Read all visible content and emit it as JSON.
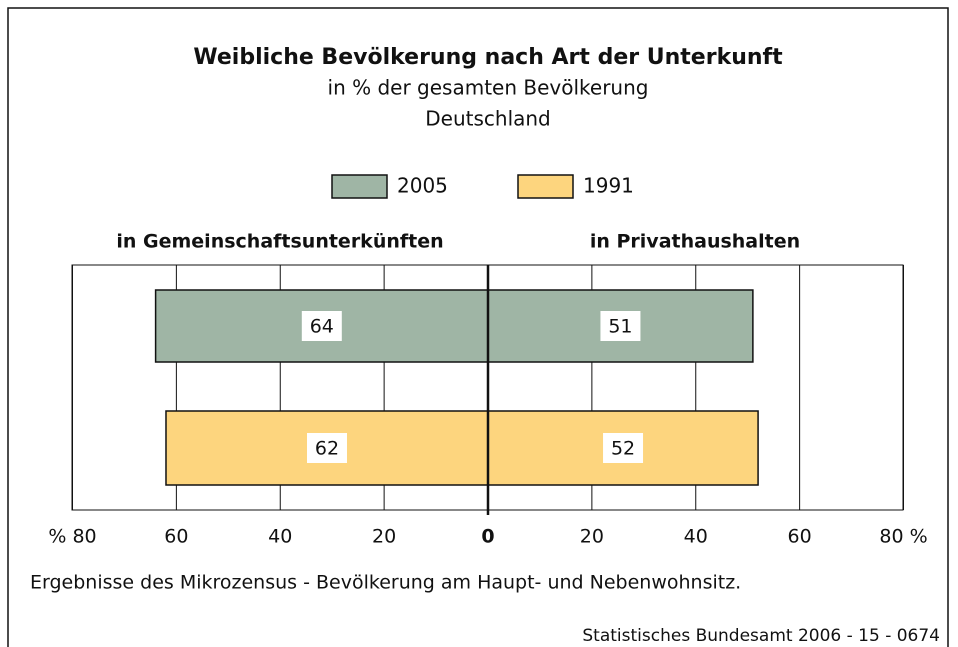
{
  "chart_data": {
    "type": "butterfly",
    "title": "Weibliche Bevölkerung nach Art der Unterkunft",
    "subtitle": [
      "in % der gesamten Bevölkerung",
      "Deutschland"
    ],
    "categories": [
      "in Gemeinschaftsunterkünften",
      "in Privathaushalten"
    ],
    "series": [
      {
        "name": "2005",
        "color": "#9fb5a5",
        "values": [
          64,
          51
        ]
      },
      {
        "name": "1991",
        "color": "#fdd57e",
        "values": [
          62,
          52
        ]
      }
    ],
    "xlim": [
      0,
      80
    ],
    "left_xticks": [
      {
        "value": 80,
        "label": "% 80"
      },
      60,
      40,
      20
    ],
    "right_xticks": [
      0,
      20,
      40,
      60,
      {
        "value": 80,
        "label": "80 %"
      }
    ],
    "grid": true,
    "note": "Ergebnisse des Mikrozensus - Bevölkerung am Haupt- und Nebenwohnsitz.",
    "source": "Statistisches Bundesamt 2006 - 15 - 0674"
  }
}
